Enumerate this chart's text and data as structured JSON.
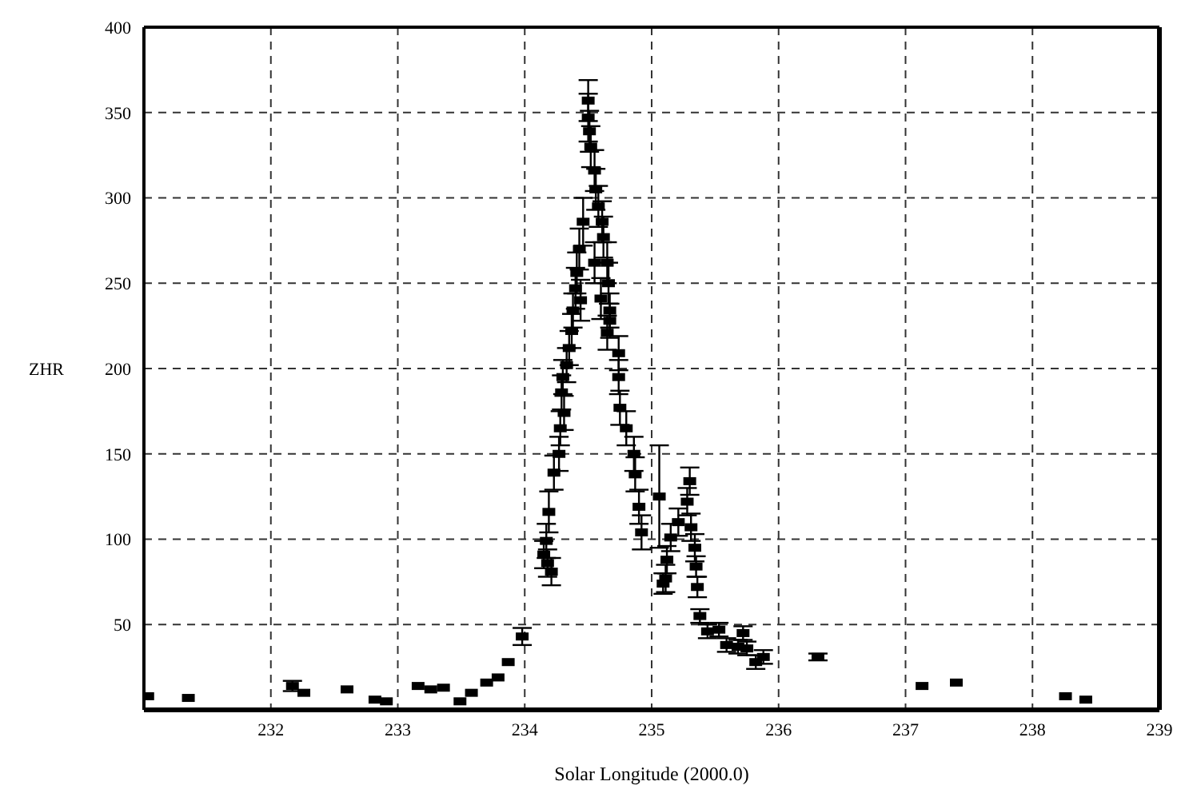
{
  "chart_data": {
    "type": "scatter",
    "xlabel": "Solar Longitude (2000.0)",
    "ylabel": "ZHR",
    "xlim": [
      231,
      239
    ],
    "xticks": [
      232,
      233,
      234,
      235,
      236,
      237,
      238,
      239
    ],
    "ylim": [
      0,
      400
    ],
    "yticks": [
      {
        "value": 0,
        "label": null
      },
      50,
      100,
      150,
      200,
      250,
      300,
      350,
      400
    ],
    "grid": true,
    "marker": "square",
    "series": [
      {
        "color": "#000000",
        "x": [
          231.03,
          231.35,
          232.17,
          232.26,
          232.6,
          232.82,
          232.91,
          233.16,
          233.26,
          233.36,
          233.49,
          233.58,
          233.7,
          233.79,
          233.87,
          233.98,
          234.15,
          234.17,
          234.18,
          234.21,
          234.19,
          234.23,
          234.27,
          234.28,
          234.31,
          234.29,
          234.3,
          234.33,
          234.35,
          234.37,
          234.38,
          234.4,
          234.41,
          234.43,
          234.44,
          234.46,
          234.5,
          234.5,
          234.51,
          234.52,
          234.55,
          234.55,
          234.56,
          234.58,
          234.6,
          234.61,
          234.62,
          234.65,
          234.66,
          234.67,
          234.65,
          234.67,
          234.74,
          234.74,
          234.75,
          234.8,
          234.86,
          234.87,
          234.9,
          234.92,
          235.06,
          235.09,
          235.11,
          235.12,
          235.15,
          235.21,
          235.28,
          235.3,
          235.31,
          235.34,
          235.35,
          235.36,
          235.38,
          235.44,
          235.53,
          235.59,
          235.68,
          235.72,
          235.75,
          235.82,
          235.88,
          236.31,
          237.13,
          237.4,
          238.26,
          238.42
        ],
        "values": [
          8,
          7,
          14,
          10,
          12,
          6,
          5,
          14,
          12,
          13,
          5,
          10,
          16,
          19,
          28,
          43,
          91,
          99,
          86,
          81,
          116,
          139,
          150,
          165,
          174,
          186,
          195,
          202,
          212,
          222,
          234,
          247,
          256,
          270,
          240,
          286,
          357,
          347,
          339,
          330,
          316,
          262,
          305,
          295,
          241,
          286,
          277,
          262,
          250,
          234,
          221,
          228,
          209,
          195,
          177,
          165,
          150,
          138,
          119,
          104,
          125,
          74,
          77,
          88,
          101,
          110,
          122,
          134,
          107,
          95,
          84,
          72,
          55,
          46,
          47,
          38,
          37,
          45,
          36,
          28,
          31,
          31,
          14,
          16,
          8,
          6
        ],
        "errors": [
          null,
          null,
          3,
          null,
          null,
          null,
          null,
          null,
          null,
          null,
          null,
          null,
          null,
          null,
          null,
          5,
          8,
          10,
          8,
          8,
          12,
          10,
          10,
          10,
          10,
          10,
          10,
          10,
          10,
          10,
          10,
          12,
          12,
          12,
          12,
          14,
          12,
          14,
          12,
          12,
          12,
          12,
          12,
          12,
          12,
          12,
          12,
          12,
          12,
          10,
          10,
          10,
          10,
          10,
          10,
          10,
          10,
          10,
          10,
          10,
          30,
          6,
          8,
          8,
          8,
          8,
          8,
          8,
          8,
          8,
          6,
          6,
          4,
          4,
          4,
          4,
          4,
          4,
          4,
          4,
          4,
          2,
          null,
          null,
          null,
          null
        ]
      }
    ]
  }
}
